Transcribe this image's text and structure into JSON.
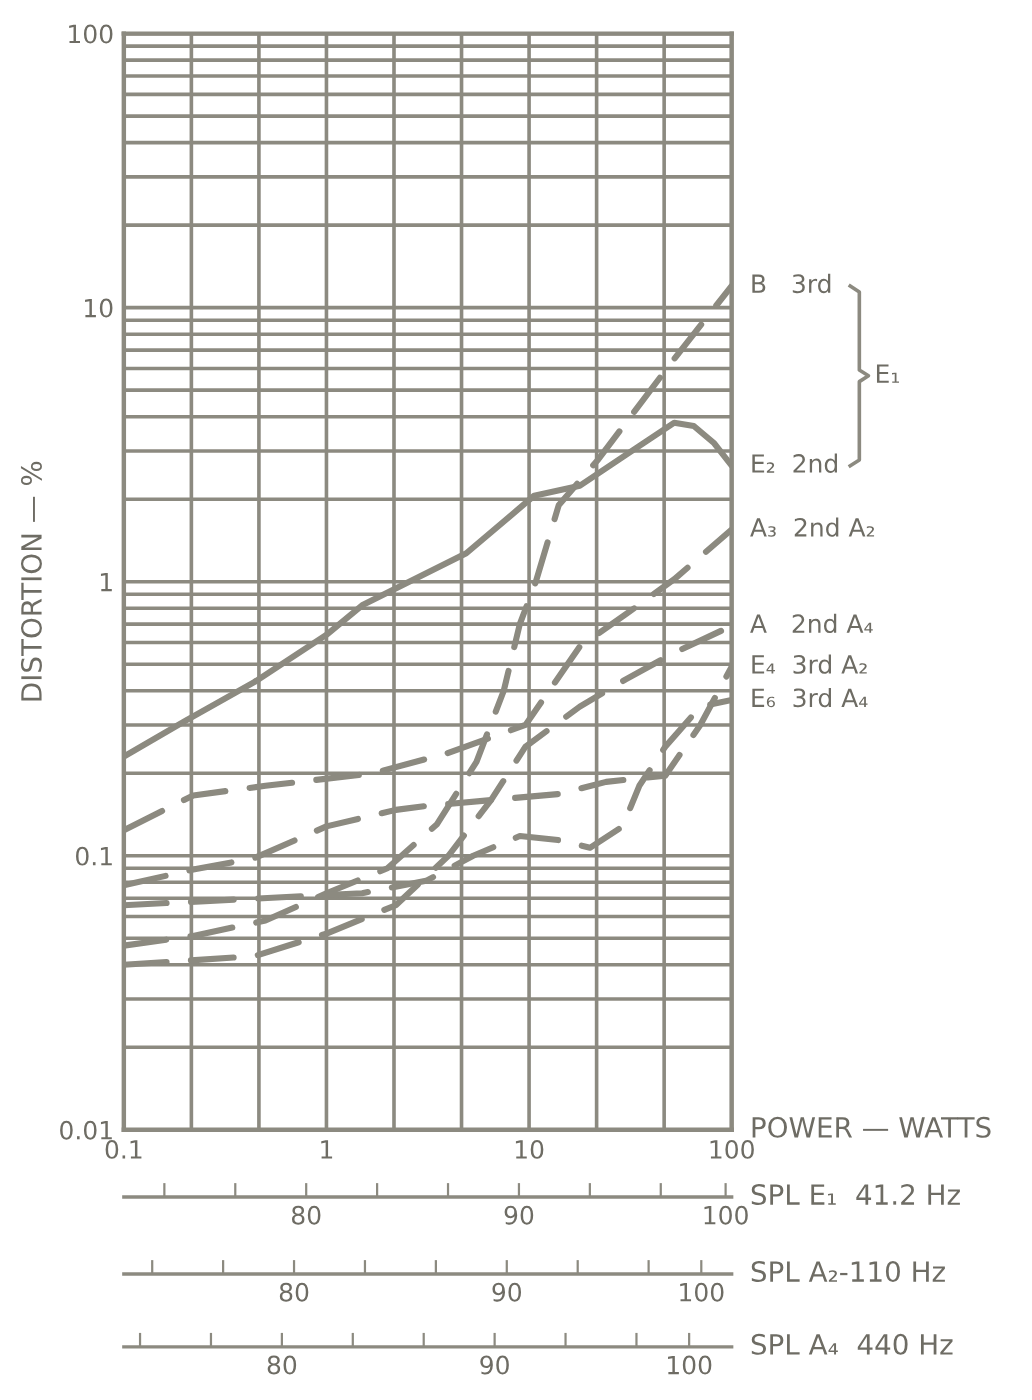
{
  "chart_data": [
    {
      "type": "line",
      "ylabel": "DISTORTION — %",
      "xlabel": "POWER — WATTS",
      "log": "xy",
      "grid": true,
      "xlim": [
        0.1,
        100
      ],
      "xticks": [
        {
          "value": 0.1,
          "label": "0.1"
        },
        1,
        10,
        100
      ],
      "ylim": [
        0.01,
        100
      ],
      "yticks": [
        {
          "value": 0.01,
          "label": "0.01"
        },
        {
          "value": 0.1,
          "label": "0.1"
        },
        1,
        10,
        100
      ],
      "annotations": [
        "E₁"
      ],
      "series": [
        {
          "name": "B   3rd",
          "color": "#8c8a80",
          "line_style": "dashed",
          "x": [
            0.1,
            0.22,
            0.5,
            1,
            2,
            3.5,
            5.5,
            7.5,
            9,
            10.8,
            14,
            18,
            22,
            52,
            100
          ],
          "values": [
            0.047,
            0.051,
            0.058,
            0.073,
            0.09,
            0.13,
            0.22,
            0.4,
            0.7,
            1.0,
            1.9,
            2.36,
            2.8,
            6.5,
            12
          ]
        },
        {
          "name": "E₂  2nd",
          "color": "#8c8a80",
          "line_style": "solid",
          "x": [
            0.1,
            0.2,
            0.44,
            1,
            1.5,
            4.9,
            10.6,
            17.8,
            30,
            52,
            65,
            82,
            100
          ],
          "values": [
            0.23,
            0.31,
            0.43,
            0.64,
            0.82,
            1.27,
            2.06,
            2.24,
            2.9,
            3.8,
            3.7,
            3.2,
            2.65
          ]
        },
        {
          "name": "A₃  2nd A₂",
          "color": "#8c8a80",
          "line_style": "dashed",
          "x": [
            0.1,
            0.22,
            0.5,
            1.7,
            3.9,
            9.6,
            17.8,
            30,
            52,
            100
          ],
          "values": [
            0.124,
            0.166,
            0.18,
            0.2,
            0.236,
            0.3,
            0.58,
            0.76,
            1.02,
            1.55
          ]
        },
        {
          "name": "A   2nd A₄",
          "color": "#8c8a80",
          "line_style": "dashed",
          "x": [
            0.1,
            0.44,
            1,
            2.2,
            4,
            6.5,
            9.6,
            17.8,
            30,
            52,
            100
          ],
          "values": [
            0.04,
            0.043,
            0.052,
            0.066,
            0.1,
            0.16,
            0.25,
            0.35,
            0.44,
            0.55,
            0.69
          ]
        },
        {
          "name": "E₄  3rd A₂",
          "color": "#8c8a80",
          "line_style": "dashed",
          "x": [
            0.1,
            0.22,
            0.44,
            1,
            2.2,
            3.1,
            6.7,
            14,
            24,
            47,
            70,
            100
          ],
          "values": [
            0.078,
            0.089,
            0.098,
            0.128,
            0.147,
            0.152,
            0.16,
            0.168,
            0.186,
            0.196,
            0.3,
            0.49
          ]
        },
        {
          "name": "E₆  3rd A₄",
          "color": "#8c8a80",
          "line_style": "dashed",
          "x": [
            0.1,
            1.5,
            3.1,
            5.3,
            9,
            14,
            20,
            29,
            35,
            47,
            70,
            100
          ],
          "values": [
            0.066,
            0.073,
            0.081,
            0.1,
            0.118,
            0.114,
            0.107,
            0.128,
            0.18,
            0.25,
            0.35,
            0.37
          ]
        }
      ]
    },
    {
      "type": "other",
      "xlabel": "SPL E₁  41.2 Hz",
      "annotations": [
        "80",
        "90",
        "100"
      ]
    },
    {
      "type": "other",
      "xlabel": "SPL A₂-110 Hz",
      "annotations": [
        "80",
        "90",
        "100"
      ]
    },
    {
      "type": "other",
      "xlabel": "SPL A₄  440 Hz",
      "annotations": [
        "80",
        "90",
        "100"
      ]
    }
  ]
}
